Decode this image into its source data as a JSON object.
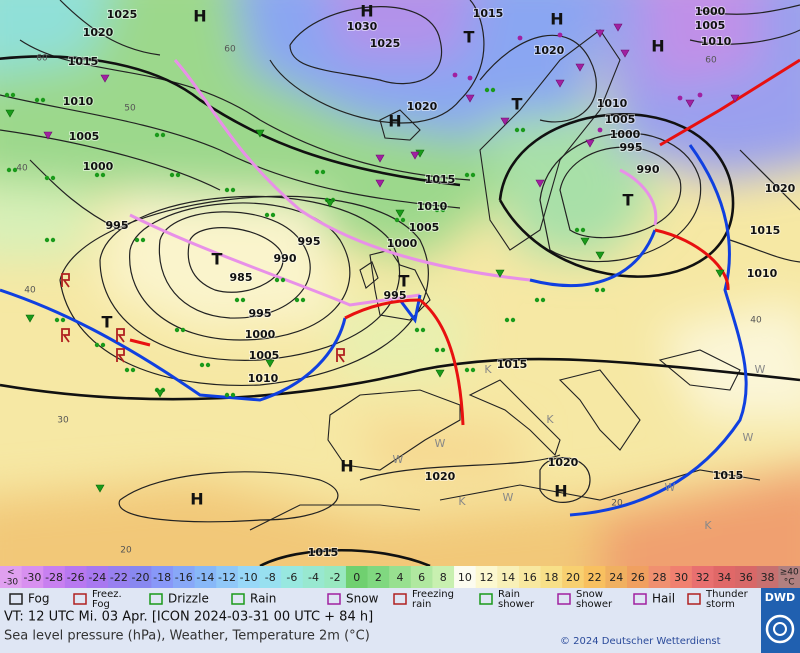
{
  "map": {
    "isobar_labels": [
      "1025",
      "1020",
      "1015",
      "1010",
      "1005",
      "1000",
      "995",
      "1030",
      "1025",
      "1015",
      "1020",
      "1020",
      "1015",
      "1010",
      "1005",
      "1000",
      "995",
      "990",
      "985",
      "995",
      "995",
      "1000",
      "1005",
      "1010",
      "1015",
      "1020",
      "1020",
      "1015",
      "1015",
      "1000",
      "1005",
      "1010",
      "1010",
      "1005",
      "1000",
      "995",
      "990",
      "1020",
      "1015",
      "1010"
    ],
    "centers": [
      "H",
      "H",
      "H",
      "H",
      "H",
      "T",
      "T",
      "T",
      "T",
      "T",
      "T",
      "H",
      "H",
      "H"
    ],
    "temperature_labels": [
      "60",
      "60",
      "50",
      "40",
      "40",
      "30",
      "20",
      "20",
      "40",
      "60"
    ],
    "weather_letters": [
      "W",
      "W",
      "W",
      "K",
      "W",
      "K",
      "K",
      "W",
      "W",
      "K"
    ]
  },
  "scale": [
    {
      "label": [
        "<",
        "-30"
      ],
      "color": "#e0a0f0"
    },
    {
      "label": [
        "-30"
      ],
      "color": "#d890f0"
    },
    {
      "label": [
        "-28"
      ],
      "color": "#c880f0"
    },
    {
      "label": [
        "-26"
      ],
      "color": "#b878f0"
    },
    {
      "label": [
        "-24"
      ],
      "color": "#a878f0"
    },
    {
      "label": [
        "-22"
      ],
      "color": "#9880f0"
    },
    {
      "label": [
        "-20"
      ],
      "color": "#8888f0"
    },
    {
      "label": [
        "-18"
      ],
      "color": "#8898f8"
    },
    {
      "label": [
        "-16"
      ],
      "color": "#88a8f8"
    },
    {
      "label": [
        "-14"
      ],
      "color": "#88b8f8"
    },
    {
      "label": [
        "-12"
      ],
      "color": "#90c8f8"
    },
    {
      "label": [
        "-10"
      ],
      "color": "#98d8f8"
    },
    {
      "label": [
        "-8"
      ],
      "color": "#98e0f0"
    },
    {
      "label": [
        "-6"
      ],
      "color": "#98e8e0"
    },
    {
      "label": [
        "-4"
      ],
      "color": "#98e8d0"
    },
    {
      "label": [
        "-2"
      ],
      "color": "#98e8c0"
    },
    {
      "label": [
        "0"
      ],
      "color": "#70d070"
    },
    {
      "label": [
        "2"
      ],
      "color": "#80d880"
    },
    {
      "label": [
        "4"
      ],
      "color": "#98e090"
    },
    {
      "label": [
        "6"
      ],
      "color": "#b0e8a0"
    },
    {
      "label": [
        "8"
      ],
      "color": "#c8f0b0"
    },
    {
      "label": [
        "10"
      ],
      "color": "#fcfcf0"
    },
    {
      "label": [
        "12"
      ],
      "color": "#fcf8d0"
    },
    {
      "label": [
        "14"
      ],
      "color": "#f8f0b8"
    },
    {
      "label": [
        "16"
      ],
      "color": "#f8e8a0"
    },
    {
      "label": [
        "18"
      ],
      "color": "#f8e088"
    },
    {
      "label": [
        "20"
      ],
      "color": "#f8d070"
    },
    {
      "label": [
        "22"
      ],
      "color": "#f8c060"
    },
    {
      "label": [
        "24"
      ],
      "color": "#f0b060"
    },
    {
      "label": [
        "26"
      ],
      "color": "#f0a060"
    },
    {
      "label": [
        "28"
      ],
      "color": "#f09070"
    },
    {
      "label": [
        "30"
      ],
      "color": "#f08070"
    },
    {
      "label": [
        "32"
      ],
      "color": "#e87070"
    },
    {
      "label": [
        "34"
      ],
      "color": "#e06868"
    },
    {
      "label": [
        "36"
      ],
      "color": "#d86868"
    },
    {
      "label": [
        "38"
      ],
      "color": "#c87070"
    },
    {
      "label": [
        "≥40",
        "°C"
      ],
      "color": "#b08080"
    }
  ],
  "legend": [
    {
      "label": [
        "Fog"
      ]
    },
    {
      "label": [
        "Freez.",
        "Fog"
      ]
    },
    {
      "label": [
        "Drizzle"
      ]
    },
    {
      "label": [
        "Rain"
      ]
    },
    {
      "label": [
        "Snow"
      ]
    },
    {
      "label": [
        "Freezing",
        "rain"
      ]
    },
    {
      "label": [
        "Rain",
        "shower"
      ]
    },
    {
      "label": [
        "Snow",
        "shower"
      ]
    },
    {
      "label": [
        "Hail"
      ]
    },
    {
      "label": [
        "Thunder",
        "storm"
      ]
    }
  ],
  "footer": {
    "valid_time": "VT: 12 UTC Mi.  03 Apr. [ICON 2024-03-31  00 UTC + 84 h]",
    "description": "Sea level pressure (hPa), Weather, Temperature 2m (°C)",
    "copyright": "© 2024 Deutscher Wetterdienst",
    "logo": "DWD"
  }
}
